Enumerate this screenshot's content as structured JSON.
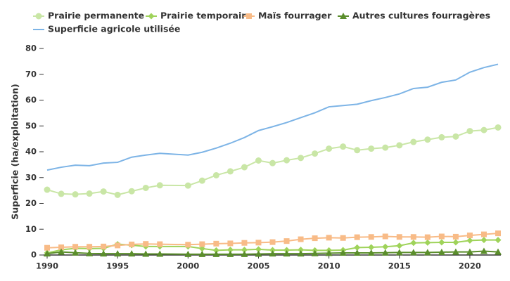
{
  "chart_data": {
    "type": "line",
    "y_label": "Superficie (ha/exploitation)",
    "x": [
      1990,
      1991,
      1992,
      1993,
      1994,
      1995,
      1996,
      1997,
      1998,
      2000,
      2001,
      2002,
      2003,
      2004,
      2005,
      2006,
      2007,
      2008,
      2009,
      2010,
      2011,
      2012,
      2013,
      2014,
      2015,
      2016,
      2017,
      2018,
      2019,
      2020,
      2021,
      2022
    ],
    "xlim": [
      1990,
      2022
    ],
    "xticks": [
      1990,
      1995,
      2000,
      2005,
      2010,
      2015,
      2020
    ],
    "ylim": [
      0,
      80
    ],
    "yticks": [
      0,
      10,
      20,
      30,
      40,
      50,
      60,
      70,
      80
    ],
    "grid": false,
    "legend": "top",
    "series": [
      {
        "name": "Prairie permanente",
        "color": "#c9e6a6",
        "marker": "circle",
        "values": [
          25.3,
          23.7,
          23.5,
          23.8,
          24.6,
          23.3,
          24.7,
          26.0,
          27.0,
          26.9,
          28.8,
          30.9,
          32.4,
          34.0,
          36.6,
          35.6,
          36.7,
          37.6,
          39.3,
          41.2,
          42.0,
          40.6,
          41.2,
          41.6,
          42.5,
          43.8,
          44.7,
          45.6,
          45.9,
          48.0,
          48.4,
          49.4
        ]
      },
      {
        "name": "Prairie temporaire",
        "color": "#9fd35a",
        "marker": "diamond",
        "values": [
          0.8,
          2.0,
          2.6,
          2.5,
          2.6,
          4.2,
          3.8,
          3.3,
          3.3,
          3.3,
          2.5,
          1.8,
          2.0,
          2.0,
          2.2,
          1.9,
          1.9,
          2.0,
          1.8,
          1.8,
          1.9,
          2.9,
          3.0,
          3.2,
          3.6,
          4.7,
          4.8,
          4.9,
          4.9,
          5.6,
          5.8,
          5.8
        ]
      },
      {
        "name": "Maïs fourrager",
        "color": "#f8bb87",
        "marker": "square",
        "values": [
          2.8,
          3.0,
          3.2,
          3.2,
          3.3,
          3.7,
          4.1,
          4.3,
          4.2,
          4.0,
          4.2,
          4.4,
          4.5,
          4.7,
          4.8,
          5.0,
          5.4,
          6.1,
          6.5,
          6.7,
          6.6,
          6.9,
          7.0,
          7.2,
          7.0,
          7.0,
          6.9,
          7.2,
          7.1,
          7.6,
          8.0,
          8.4
        ]
      },
      {
        "name": "Autres cultures fourragères",
        "color": "#5b8e2c",
        "marker": "triangle",
        "values": [
          0.5,
          1.2,
          0.9,
          0.6,
          0.5,
          0.5,
          0.5,
          0.4,
          0.4,
          0.3,
          0.3,
          0.3,
          0.3,
          0.3,
          0.4,
          0.5,
          0.5,
          0.5,
          0.6,
          0.7,
          0.8,
          0.8,
          0.8,
          0.9,
          1.0,
          1.0,
          1.0,
          1.1,
          1.2,
          1.2,
          1.5,
          1.2
        ]
      },
      {
        "name": "Superficie agricole utilisée",
        "color": "#7db4e6",
        "marker": "none",
        "values": [
          32.9,
          34.0,
          34.8,
          34.6,
          35.6,
          35.9,
          37.9,
          38.7,
          39.4,
          38.7,
          39.8,
          41.4,
          43.3,
          45.5,
          48.2,
          49.7,
          51.3,
          53.2,
          55.1,
          57.4,
          57.9,
          58.4,
          59.8,
          61.0,
          62.4,
          64.5,
          65.0,
          66.9,
          67.8,
          70.8,
          72.6,
          73.9
        ]
      }
    ]
  }
}
